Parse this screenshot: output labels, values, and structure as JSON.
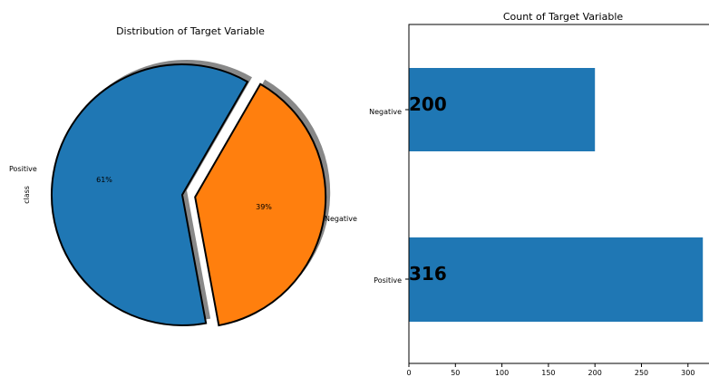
{
  "chart_data": [
    {
      "type": "pie",
      "title": "Distribution of Target  Variable",
      "ylabel": "class",
      "labels": [
        "Positive",
        "Negative"
      ],
      "values": [
        316,
        200
      ],
      "percent_labels": [
        "61%",
        "39%"
      ],
      "colors": [
        "#1f77b4",
        "#ff7f0e"
      ],
      "explode": [
        0,
        0.1
      ],
      "shadow": true
    },
    {
      "type": "bar",
      "orientation": "horizontal",
      "title": "Count of Target Variable",
      "categories": [
        "Negative",
        "Positive"
      ],
      "values": [
        200,
        316
      ],
      "data_labels": [
        "200",
        "316"
      ],
      "color": "#1f77b4",
      "xlim": [
        0,
        320
      ],
      "xticks": [
        "0",
        "50",
        "100",
        "150",
        "200",
        "250",
        "300"
      ],
      "grid": false
    }
  ]
}
